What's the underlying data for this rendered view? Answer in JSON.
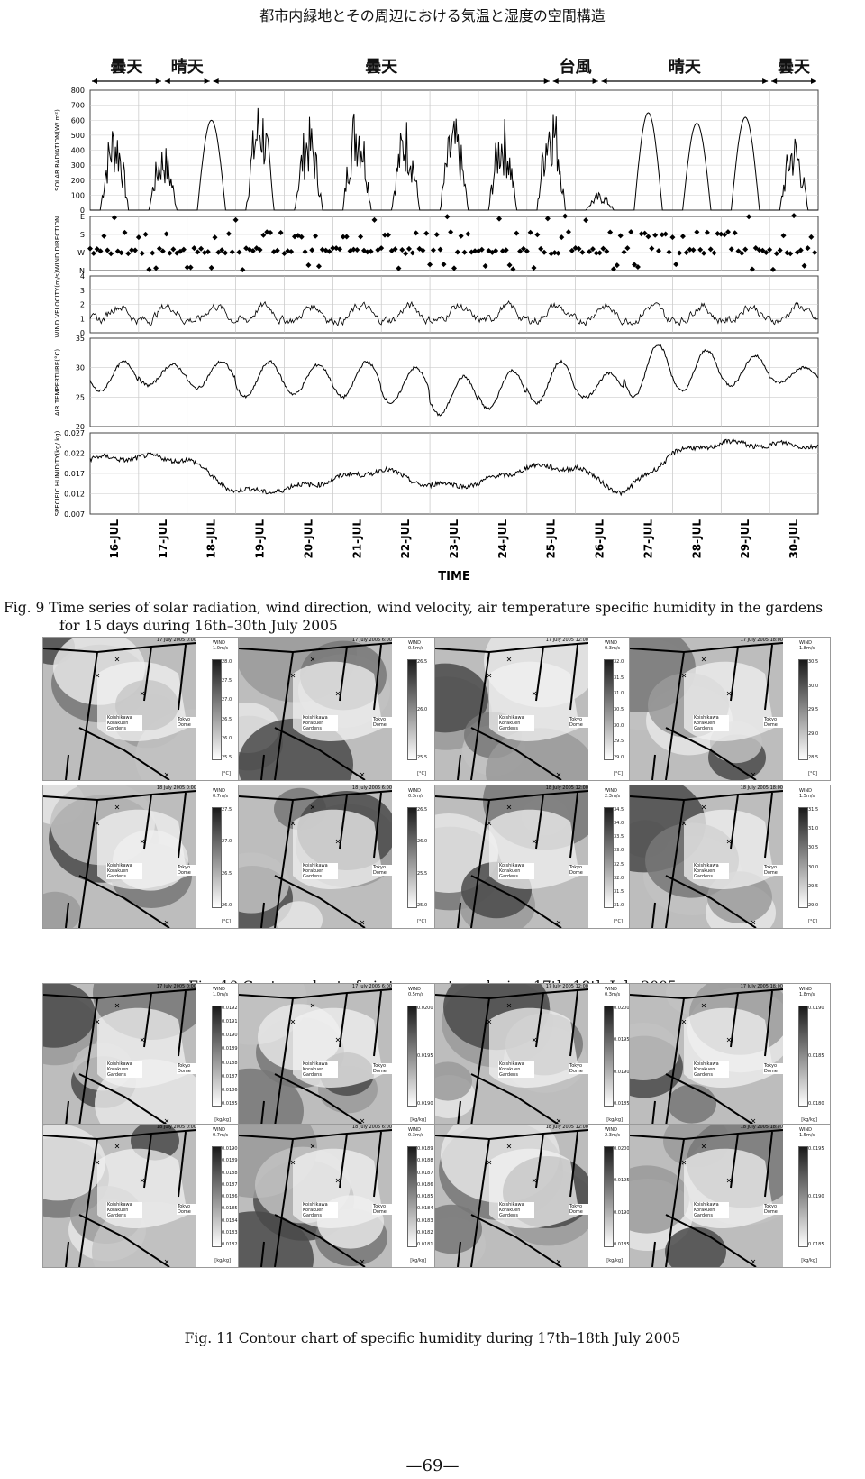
{
  "header": "都市内緑地とその周辺における気温と湿度の空間構造",
  "weather_bands": [
    {
      "label": "曇天",
      "from": 0.0,
      "to": 1.5
    },
    {
      "label": "晴天",
      "from": 1.5,
      "to": 2.5
    },
    {
      "label": "曇天",
      "from": 2.5,
      "to": 9.5
    },
    {
      "label": "台風",
      "from": 9.5,
      "to": 10.5
    },
    {
      "label": "晴天",
      "from": 10.5,
      "to": 14.0
    },
    {
      "label": "曇天",
      "from": 14.0,
      "to": 15.0
    }
  ],
  "chart_data": {
    "type": "line",
    "x_label": "TIME",
    "x_ticks": [
      "16-JUL",
      "17-JUL",
      "18-JUL",
      "19-JUL",
      "20-JUL",
      "21-JUL",
      "22-JUL",
      "23-JUL",
      "24-JUL",
      "25-JUL",
      "26-JUL",
      "27-JUL",
      "28-JUL",
      "29-JUL",
      "30-JUL"
    ],
    "panels": [
      {
        "ylabel": "SOLAR RADIATION(W/ m²)",
        "ylim": [
          0,
          800
        ],
        "ticks": [
          "0",
          "100",
          "200",
          "300",
          "400",
          "500",
          "600",
          "700",
          "800"
        ],
        "daily_peaks": [
          630,
          460,
          600,
          780,
          630,
          760,
          640,
          630,
          640,
          790,
          120,
          650,
          580,
          620,
          540
        ]
      },
      {
        "ylabel": "WIND DIRECTION",
        "ylim": [
          "N",
          "W",
          "S",
          "E"
        ],
        "ticks": [
          "N",
          "W",
          "S",
          "E"
        ]
      },
      {
        "ylabel": "WIND VELOCITY(m/s)",
        "ylim": [
          0,
          4
        ],
        "ticks": [
          "0",
          "1",
          "2",
          "3",
          "4"
        ]
      },
      {
        "ylabel": "AIR TEMPERTURE(°C)",
        "ylim": [
          20,
          35
        ],
        "ticks": [
          "20",
          "25",
          "30",
          "35"
        ],
        "daily_max": [
          31,
          30.5,
          31,
          31,
          30.5,
          31,
          30,
          28.5,
          29.5,
          31,
          29,
          34,
          33,
          32,
          30
        ],
        "daily_min": [
          26,
          27,
          26.5,
          25,
          25.5,
          25,
          24,
          22,
          23,
          24,
          25,
          25,
          26,
          27,
          27.5
        ]
      },
      {
        "ylabel": "SPECIFIC HUMIDITY(kg/ kg)",
        "ylim": [
          0.007,
          0.027
        ],
        "ticks": [
          "0.007",
          "0.012",
          "0.017",
          "0.022",
          "0.027"
        ],
        "daily_mean": [
          0.0205,
          0.021,
          0.0205,
          0.0125,
          0.013,
          0.0155,
          0.018,
          0.014,
          0.0145,
          0.0185,
          0.0185,
          0.012,
          0.022,
          0.0245,
          0.024
        ]
      }
    ]
  },
  "fig9_caption_line1": "Fig. 9 Time series of solar radiation, wind direction, wind velocity, air temperature specific humidity in the gardens",
  "fig9_caption_line2": "for 15 days during 16th–30th July 2005",
  "fig10_caption": "Fig. 10 Contour chart of air temperature during 17th–18th July 2005",
  "fig11_caption": "Fig. 11 Contour chart of specific humidity during 17th–18th July 2005",
  "page_number": "—69—",
  "map_labels": {
    "garden": "Koishikawa Korakuen Gardens",
    "dome": "Tokyo Dome"
  },
  "fig10_panels": [
    {
      "stamp": "17 July 2005 0:00",
      "wind": "WIND 1.0m/s",
      "unit": "[°C]",
      "ticks": [
        "28.0",
        "27.5",
        "27.0",
        "26.5",
        "26.0",
        "25.5"
      ]
    },
    {
      "stamp": "17 July 2005 6:00",
      "wind": "WIND 0.5m/s",
      "unit": "[°C]",
      "ticks": [
        "26.5",
        "26.0",
        "25.5"
      ]
    },
    {
      "stamp": "17 July 2005 12:00",
      "wind": "WIND 0.3m/s",
      "unit": "[°C]",
      "ticks": [
        "32.0",
        "31.5",
        "31.0",
        "30.5",
        "30.0",
        "29.5",
        "29.0"
      ]
    },
    {
      "stamp": "17 July 2005 18:00",
      "wind": "WIND 1.8m/s",
      "unit": "[°C]",
      "ticks": [
        "30.5",
        "30.0",
        "29.5",
        "29.0",
        "28.5"
      ]
    },
    {
      "stamp": "18 July 2005 0:00",
      "wind": "WIND 0.7m/s",
      "unit": "[°C]",
      "ticks": [
        "27.5",
        "27.0",
        "26.5",
        "26.0"
      ]
    },
    {
      "stamp": "18 July 2005 6:00",
      "wind": "WIND 0.3m/s",
      "unit": "[°C]",
      "ticks": [
        "26.5",
        "26.0",
        "25.5",
        "25.0"
      ]
    },
    {
      "stamp": "18 July 2005 12:00",
      "wind": "WIND 2.3m/s",
      "unit": "[°C]",
      "ticks": [
        "34.5",
        "34.0",
        "33.5",
        "33.0",
        "32.5",
        "32.0",
        "31.5",
        "31.0"
      ]
    },
    {
      "stamp": "18 July 2005 18:00",
      "wind": "WIND 1.5m/s",
      "unit": "[°C]",
      "ticks": [
        "31.5",
        "31.0",
        "30.5",
        "30.0",
        "29.5",
        "29.0"
      ]
    }
  ],
  "fig11_panels": [
    {
      "stamp": "17 July 2005 0:00",
      "wind": "WIND 1.0m/s",
      "unit": "[kg/kg]",
      "ticks": [
        "0.0192",
        "0.0191",
        "0.0190",
        "0.0189",
        "0.0188",
        "0.0187",
        "0.0186",
        "0.0185"
      ]
    },
    {
      "stamp": "17 July 2005 6:00",
      "wind": "WIND 0.5m/s",
      "unit": "[kg/kg]",
      "ticks": [
        "0.0200",
        "0.0195",
        "0.0190"
      ]
    },
    {
      "stamp": "17 July 2005 12:00",
      "wind": "WIND 0.3m/s",
      "unit": "[kg/kg]",
      "ticks": [
        "0.0200",
        "0.0195",
        "0.0190",
        "0.0185"
      ]
    },
    {
      "stamp": "17 July 2005 18:00",
      "wind": "WIND 1.8m/s",
      "unit": "[kg/kg]",
      "ticks": [
        "0.0190",
        "0.0185",
        "0.0180"
      ]
    },
    {
      "stamp": "18 July 2005 0:00",
      "wind": "WIND 0.7m/s",
      "unit": "[kg/kg]",
      "ticks": [
        "0.0190",
        "0.0189",
        "0.0188",
        "0.0187",
        "0.0186",
        "0.0185",
        "0.0184",
        "0.0183",
        "0.0182"
      ]
    },
    {
      "stamp": "18 July 2005 6:00",
      "wind": "WIND 0.3m/s",
      "unit": "[kg/kg]",
      "ticks": [
        "0.0189",
        "0.0188",
        "0.0187",
        "0.0186",
        "0.0185",
        "0.0184",
        "0.0183",
        "0.0182",
        "0.0181"
      ]
    },
    {
      "stamp": "18 July 2005 12:00",
      "wind": "WIND 2.3m/s",
      "unit": "[kg/kg]",
      "ticks": [
        "0.0200",
        "0.0195",
        "0.0190",
        "0.0185"
      ]
    },
    {
      "stamp": "18 July 2005 18:00",
      "wind": "WIND 1.5m/s",
      "unit": "[kg/kg]",
      "ticks": [
        "0.0195",
        "0.0190",
        "0.0185"
      ]
    }
  ]
}
